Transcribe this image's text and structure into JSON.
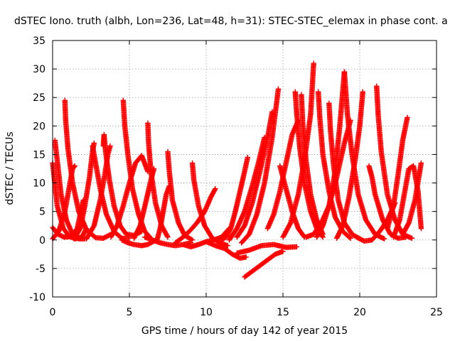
{
  "chart_data": {
    "type": "scatter",
    "title": "dSTEC Iono. truth (albh, Lon=236, Lat=48, h=31): STEC-STEC_elemax in phase cont. a",
    "xlabel": "GPS time / hours of day 142 of year 2015",
    "ylabel": "dSTEC  / TECUs",
    "xlim": [
      0,
      25
    ],
    "ylim": [
      -10,
      35
    ],
    "xticks": [
      0,
      5,
      10,
      15,
      20,
      25
    ],
    "yticks": [
      -10,
      -5,
      0,
      5,
      10,
      15,
      20,
      25,
      30,
      35
    ],
    "grid": true,
    "marker": "plus",
    "color": "#ff0000",
    "series": [
      {
        "x": [
          0.0,
          0.3,
          0.7,
          1.1,
          1.5,
          1.9,
          2.2
        ],
        "y": [
          13.5,
          6.0,
          2.0,
          0.6,
          0.2,
          0.5,
          2.0
        ]
      },
      {
        "x": [
          0.0,
          0.35,
          0.75,
          1.2,
          1.6,
          2.0
        ],
        "y": [
          2.2,
          1.0,
          0.5,
          0.6,
          2.0,
          7.0
        ]
      },
      {
        "x": [
          0.15,
          0.3,
          0.55,
          0.9,
          1.3,
          1.7,
          2.1
        ],
        "y": [
          17.5,
          14.0,
          8.0,
          3.5,
          1.0,
          0.2,
          0.2
        ]
      },
      {
        "x": [
          0.0,
          0.4,
          0.8,
          1.1,
          1.3,
          1.45
        ],
        "y": [
          0.2,
          1.5,
          5.0,
          9.5,
          12.5,
          13.0
        ]
      },
      {
        "x": [
          0.8,
          0.85,
          1.0,
          1.3,
          1.7,
          2.2,
          2.8,
          3.3,
          3.8
        ],
        "y": [
          24.5,
          21.0,
          16.0,
          10.0,
          5.0,
          1.8,
          0.4,
          0.3,
          1.0
        ]
      },
      {
        "x": [
          1.4,
          1.8,
          2.1,
          2.4,
          2.6,
          2.7
        ],
        "y": [
          0.2,
          2.0,
          6.0,
          11.0,
          15.5,
          17.0
        ]
      },
      {
        "x": [
          2.6,
          2.8,
          3.1,
          3.5,
          4.0,
          4.5,
          5.0
        ],
        "y": [
          16.5,
          13.5,
          9.0,
          4.5,
          1.5,
          0.3,
          0.3
        ]
      },
      {
        "x": [
          3.3,
          3.35,
          3.45,
          3.7,
          4.0,
          4.4,
          4.8,
          5.3,
          5.8
        ],
        "y": [
          16.5,
          18.5,
          15.5,
          10.5,
          6.0,
          2.5,
          1.0,
          0.8,
          1.5
        ]
      },
      {
        "x": [
          2.2,
          2.7,
          3.1,
          3.4,
          3.6,
          3.75
        ],
        "y": [
          0.2,
          2.5,
          7.0,
          11.5,
          15.0,
          16.5
        ]
      },
      {
        "x": [
          3.8,
          4.2,
          4.6,
          5.0,
          5.4,
          5.8,
          6.2
        ],
        "y": [
          0.5,
          2.5,
          6.0,
          10.0,
          13.5,
          14.8,
          12.0
        ]
      },
      {
        "x": [
          4.6,
          4.7,
          4.9,
          5.2,
          5.6,
          6.0,
          6.4
        ],
        "y": [
          24.5,
          20.0,
          15.0,
          9.0,
          4.5,
          1.5,
          0.3
        ]
      },
      {
        "x": [
          4.5,
          4.9,
          5.3,
          5.8,
          6.2,
          6.6
        ],
        "y": [
          0.0,
          -0.5,
          -0.8,
          -1.0,
          -0.8,
          -0.2
        ]
      },
      {
        "x": [
          6.2,
          6.25,
          6.4,
          6.7,
          7.1,
          7.5
        ],
        "y": [
          20.5,
          17.0,
          12.0,
          6.5,
          2.5,
          0.5
        ]
      },
      {
        "x": [
          5.3,
          5.7,
          6.1,
          6.4,
          6.6
        ],
        "y": [
          0.3,
          2.5,
          7.0,
          10.5,
          12.5
        ]
      },
      {
        "x": [
          6.0,
          6.5,
          7.0,
          7.5,
          8.0,
          8.5,
          9.0
        ],
        "y": [
          0.5,
          0.0,
          -0.5,
          -0.8,
          -1.0,
          -0.8,
          -0.5
        ]
      },
      {
        "x": [
          7.5,
          7.6,
          7.8,
          8.2,
          8.6,
          9.1
        ],
        "y": [
          15.5,
          12.0,
          7.0,
          3.0,
          0.8,
          0.0
        ]
      },
      {
        "x": [
          6.8,
          7.0,
          7.2,
          7.4,
          7.6
        ],
        "y": [
          0.0,
          2.0,
          5.0,
          8.0,
          9.5
        ]
      },
      {
        "x": [
          9.1,
          9.2,
          9.5,
          9.9,
          10.4,
          10.9,
          11.4
        ],
        "y": [
          13.5,
          10.5,
          6.0,
          2.5,
          0.3,
          -0.5,
          -1.0
        ]
      },
      {
        "x": [
          8.0,
          8.4,
          8.9,
          9.4,
          9.9,
          10.3,
          10.6
        ],
        "y": [
          -0.5,
          0.3,
          1.5,
          3.0,
          5.0,
          7.5,
          9.0
        ]
      },
      {
        "x": [
          8.5,
          9.0,
          9.5,
          10.0,
          10.5,
          11.0,
          11.5
        ],
        "y": [
          -0.8,
          -1.2,
          -0.8,
          -0.3,
          0.0,
          0.5,
          2.0
        ]
      },
      {
        "x": [
          10.0,
          10.6,
          11.2,
          11.7,
          12.2,
          12.6
        ],
        "y": [
          -0.3,
          -1.0,
          -1.5,
          -2.5,
          -3.2,
          -3.0
        ]
      },
      {
        "x": [
          11.0,
          11.3,
          11.6,
          11.9,
          12.2,
          12.5,
          12.7
        ],
        "y": [
          0.0,
          0.5,
          2.0,
          5.0,
          8.5,
          12.0,
          14.5
        ]
      },
      {
        "x": [
          11.5,
          12.0,
          12.5,
          13.0,
          13.4,
          13.8
        ],
        "y": [
          0.0,
          2.0,
          5.0,
          9.5,
          13.5,
          18.0
        ]
      },
      {
        "x": [
          12.0,
          12.5,
          13.0,
          13.5,
          14.0,
          14.3
        ],
        "y": [
          0.5,
          2.5,
          6.5,
          12.0,
          18.0,
          22.5
        ]
      },
      {
        "x": [
          12.3,
          12.8,
          13.3,
          13.8,
          14.3,
          14.7
        ],
        "y": [
          -0.5,
          1.0,
          4.5,
          10.0,
          18.0,
          26.5
        ]
      },
      {
        "x": [
          12.5,
          13.0,
          13.5,
          14.0,
          14.5,
          15.0
        ],
        "y": [
          -6.5,
          -5.5,
          -4.5,
          -3.5,
          -2.5,
          -2.0
        ]
      },
      {
        "x": [
          12.0,
          12.8,
          13.6,
          14.4,
          15.2,
          15.9
        ],
        "y": [
          -2.3,
          -1.8,
          -1.0,
          -0.8,
          -1.3,
          -1.2
        ]
      },
      {
        "x": [
          14.0,
          14.4,
          14.8,
          15.2,
          15.6,
          16.0
        ],
        "y": [
          2.0,
          4.5,
          8.5,
          13.5,
          18.5,
          21.0
        ]
      },
      {
        "x": [
          14.8,
          15.2,
          15.6,
          16.0,
          16.4
        ],
        "y": [
          13.0,
          9.0,
          5.0,
          2.0,
          0.5
        ]
      },
      {
        "x": [
          15.0,
          15.5,
          16.0,
          16.4,
          16.8,
          17.0
        ],
        "y": [
          0.5,
          3.0,
          8.0,
          14.0,
          22.0,
          31.0
        ]
      },
      {
        "x": [
          15.8,
          15.9,
          16.1,
          16.4,
          16.8,
          17.2,
          17.6
        ],
        "y": [
          26.0,
          22.0,
          16.0,
          10.0,
          5.0,
          2.0,
          0.5
        ]
      },
      {
        "x": [
          16.2,
          16.3,
          16.5,
          16.8,
          17.2,
          17.6
        ],
        "y": [
          25.5,
          20.0,
          14.0,
          8.0,
          3.5,
          1.0
        ]
      },
      {
        "x": [
          16.5,
          17.0,
          17.5,
          18.0,
          18.5,
          19.0,
          19.4
        ],
        "y": [
          0.5,
          1.0,
          3.0,
          6.0,
          11.0,
          17.0,
          21.0
        ]
      },
      {
        "x": [
          17.3,
          17.4,
          17.6,
          18.0,
          18.4,
          18.9,
          19.4
        ],
        "y": [
          26.0,
          21.5,
          15.0,
          8.5,
          4.0,
          1.5,
          0.3
        ]
      },
      {
        "x": [
          18.0,
          18.1,
          18.3,
          18.6,
          19.0,
          19.5,
          20.0
        ],
        "y": [
          24.0,
          19.0,
          13.0,
          7.0,
          3.0,
          1.0,
          0.2
        ]
      },
      {
        "x": [
          17.2,
          17.6,
          18.0,
          18.4,
          18.7,
          19.0
        ],
        "y": [
          0.5,
          2.5,
          6.0,
          12.0,
          20.0,
          29.5
        ]
      },
      {
        "x": [
          19.0,
          19.2,
          19.5,
          19.9,
          20.4,
          21.0,
          21.6
        ],
        "y": [
          29.5,
          22.0,
          15.0,
          8.0,
          3.5,
          1.0,
          0.2
        ]
      },
      {
        "x": [
          18.5,
          18.9,
          19.3,
          19.7,
          20.0,
          20.2
        ],
        "y": [
          0.3,
          2.5,
          7.5,
          14.0,
          20.0,
          26.0
        ]
      },
      {
        "x": [
          19.8,
          20.3,
          20.8,
          21.3,
          21.8,
          22.3
        ],
        "y": [
          0.5,
          -0.2,
          0.0,
          1.5,
          3.5,
          6.5
        ]
      },
      {
        "x": [
          20.6,
          20.8,
          21.0,
          21.5,
          22.0,
          22.5,
          23.0
        ],
        "y": [
          13.0,
          11.0,
          8.0,
          3.5,
          1.0,
          0.3,
          0.5
        ]
      },
      {
        "x": [
          21.1,
          21.2,
          21.4,
          21.8,
          22.3,
          22.8,
          23.4
        ],
        "y": [
          27.0,
          22.0,
          15.5,
          8.0,
          3.5,
          1.0,
          0.3
        ]
      },
      {
        "x": [
          21.8,
          22.2,
          22.5,
          22.8,
          23.1
        ],
        "y": [
          2.0,
          6.0,
          11.5,
          17.5,
          21.5
        ]
      },
      {
        "x": [
          22.2,
          22.6,
          22.9,
          23.2,
          23.5,
          23.8,
          24.0
        ],
        "y": [
          0.5,
          3.5,
          8.0,
          12.5,
          13.0,
          8.5,
          2.0
        ]
      },
      {
        "x": [
          22.8,
          23.2,
          23.6,
          24.0
        ],
        "y": [
          1.0,
          3.0,
          7.0,
          13.5
        ]
      }
    ]
  }
}
